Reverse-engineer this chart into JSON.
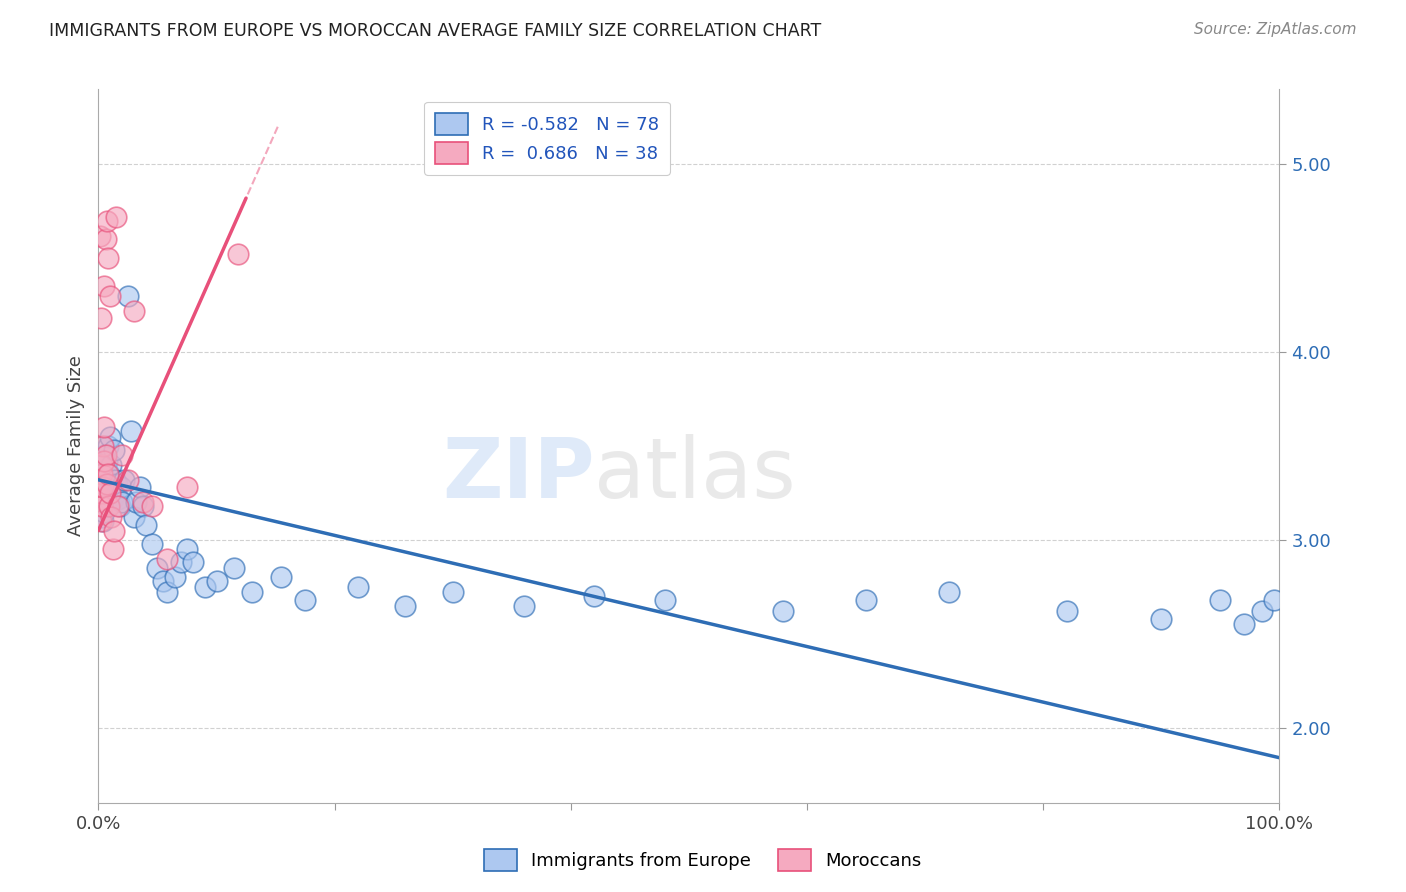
{
  "title": "IMMIGRANTS FROM EUROPE VS MOROCCAN AVERAGE FAMILY SIZE CORRELATION CHART",
  "source": "Source: ZipAtlas.com",
  "ylabel": "Average Family Size",
  "yticks": [
    2.0,
    3.0,
    4.0,
    5.0
  ],
  "xlim": [
    0.0,
    1.0
  ],
  "ylim": [
    1.6,
    5.4
  ],
  "legend1_r": "-0.582",
  "legend1_n": "78",
  "legend2_r": "0.686",
  "legend2_n": "38",
  "blue_color": "#adc8f0",
  "pink_color": "#f5aac0",
  "blue_line_color": "#2e6db5",
  "pink_line_color": "#e8507a",
  "watermark_zip": "ZIP",
  "watermark_atlas": "atlas",
  "blue_line_x0": 0.0,
  "blue_line_y0": 3.32,
  "blue_line_x1": 1.0,
  "blue_line_y1": 1.84,
  "pink_line_x0": 0.0,
  "pink_line_y0": 3.05,
  "pink_line_x1": 0.125,
  "pink_line_y1": 4.82,
  "blue_scatter_x": [
    0.001,
    0.001,
    0.001,
    0.002,
    0.002,
    0.002,
    0.002,
    0.003,
    0.003,
    0.003,
    0.003,
    0.004,
    0.004,
    0.004,
    0.004,
    0.005,
    0.005,
    0.005,
    0.005,
    0.006,
    0.006,
    0.007,
    0.007,
    0.007,
    0.008,
    0.008,
    0.009,
    0.009,
    0.01,
    0.01,
    0.011,
    0.012,
    0.012,
    0.013,
    0.014,
    0.015,
    0.016,
    0.017,
    0.018,
    0.019,
    0.02,
    0.022,
    0.025,
    0.028,
    0.03,
    0.032,
    0.035,
    0.038,
    0.04,
    0.045,
    0.05,
    0.055,
    0.058,
    0.065,
    0.07,
    0.075,
    0.08,
    0.09,
    0.1,
    0.115,
    0.13,
    0.155,
    0.175,
    0.22,
    0.26,
    0.3,
    0.36,
    0.42,
    0.48,
    0.58,
    0.65,
    0.72,
    0.82,
    0.9,
    0.95,
    0.97,
    0.985,
    0.995
  ],
  "blue_scatter_y": [
    3.25,
    3.32,
    3.18,
    3.28,
    3.2,
    3.35,
    3.15,
    3.38,
    3.22,
    3.12,
    3.3,
    3.4,
    3.18,
    3.28,
    3.1,
    3.45,
    3.22,
    3.3,
    3.15,
    3.38,
    3.2,
    3.42,
    3.28,
    3.18,
    3.5,
    3.25,
    3.22,
    3.35,
    3.55,
    3.28,
    3.4,
    3.3,
    3.22,
    3.48,
    3.32,
    3.25,
    3.3,
    3.22,
    3.18,
    3.28,
    3.2,
    3.32,
    4.3,
    3.58,
    3.12,
    3.2,
    3.28,
    3.18,
    3.08,
    2.98,
    2.85,
    2.78,
    2.72,
    2.8,
    2.88,
    2.95,
    2.88,
    2.75,
    2.78,
    2.85,
    2.72,
    2.8,
    2.68,
    2.75,
    2.65,
    2.72,
    2.65,
    2.7,
    2.68,
    2.62,
    2.68,
    2.72,
    2.62,
    2.58,
    2.68,
    2.55,
    2.62,
    2.68
  ],
  "pink_scatter_x": [
    0.001,
    0.001,
    0.001,
    0.002,
    0.002,
    0.002,
    0.002,
    0.003,
    0.003,
    0.003,
    0.003,
    0.004,
    0.004,
    0.005,
    0.005,
    0.005,
    0.006,
    0.006,
    0.007,
    0.007,
    0.008,
    0.008,
    0.009,
    0.01,
    0.01,
    0.011,
    0.012,
    0.013,
    0.015,
    0.017,
    0.02,
    0.025,
    0.03,
    0.038,
    0.045,
    0.058,
    0.075,
    0.118
  ],
  "pink_scatter_y": [
    3.32,
    3.22,
    4.62,
    3.28,
    3.18,
    3.1,
    4.18,
    3.4,
    3.25,
    3.18,
    3.35,
    3.5,
    3.28,
    3.42,
    3.6,
    4.35,
    4.6,
    3.45,
    4.7,
    3.3,
    4.5,
    3.35,
    3.18,
    3.25,
    4.3,
    3.12,
    2.95,
    3.05,
    4.72,
    3.18,
    3.45,
    3.32,
    4.22,
    3.2,
    3.18,
    2.9,
    3.28,
    4.52
  ]
}
